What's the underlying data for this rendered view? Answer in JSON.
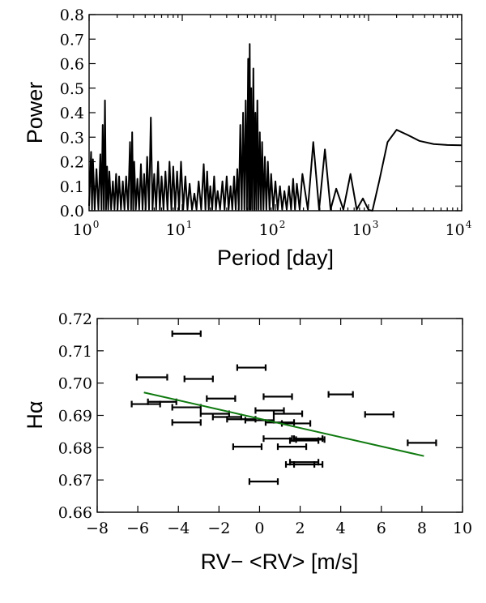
{
  "chart_data": [
    {
      "type": "line",
      "xlabel": "Period [day]",
      "ylabel": "Power",
      "xscale": "log",
      "xlim": [
        1,
        10000
      ],
      "ylim": [
        0.0,
        0.8
      ],
      "xticks": [
        {
          "base": "10",
          "exp": "0"
        },
        {
          "base": "10",
          "exp": "1"
        },
        {
          "base": "10",
          "exp": "2"
        },
        {
          "base": "10",
          "exp": "3"
        },
        {
          "base": "10",
          "exp": "4"
        }
      ],
      "yticks": [
        "0.0",
        "0.1",
        "0.2",
        "0.3",
        "0.4",
        "0.5",
        "0.6",
        "0.7",
        "0.8"
      ],
      "grid": false,
      "color": "#000000",
      "peaks": [
        {
          "x": 1.05,
          "y": 0.24
        },
        {
          "x": 1.1,
          "y": 0.21
        },
        {
          "x": 1.2,
          "y": 0.17
        },
        {
          "x": 1.32,
          "y": 0.23
        },
        {
          "x": 1.4,
          "y": 0.35
        },
        {
          "x": 1.48,
          "y": 0.45
        },
        {
          "x": 1.56,
          "y": 0.18
        },
        {
          "x": 1.65,
          "y": 0.16
        },
        {
          "x": 1.8,
          "y": 0.12
        },
        {
          "x": 1.95,
          "y": 0.15
        },
        {
          "x": 2.1,
          "y": 0.14
        },
        {
          "x": 2.3,
          "y": 0.12
        },
        {
          "x": 2.5,
          "y": 0.14
        },
        {
          "x": 2.75,
          "y": 0.28
        },
        {
          "x": 2.9,
          "y": 0.32
        },
        {
          "x": 3.05,
          "y": 0.2
        },
        {
          "x": 3.3,
          "y": 0.13
        },
        {
          "x": 3.6,
          "y": 0.19
        },
        {
          "x": 3.9,
          "y": 0.15
        },
        {
          "x": 4.2,
          "y": 0.22
        },
        {
          "x": 4.6,
          "y": 0.38
        },
        {
          "x": 5.0,
          "y": 0.15
        },
        {
          "x": 5.5,
          "y": 0.2
        },
        {
          "x": 6.0,
          "y": 0.14
        },
        {
          "x": 6.6,
          "y": 0.16
        },
        {
          "x": 7.3,
          "y": 0.2
        },
        {
          "x": 8.0,
          "y": 0.18
        },
        {
          "x": 8.8,
          "y": 0.16
        },
        {
          "x": 9.7,
          "y": 0.2
        },
        {
          "x": 10.8,
          "y": 0.14
        },
        {
          "x": 12.0,
          "y": 0.11
        },
        {
          "x": 13.5,
          "y": 0.07
        },
        {
          "x": 15.0,
          "y": 0.12
        },
        {
          "x": 17.0,
          "y": 0.19
        },
        {
          "x": 18.5,
          "y": 0.16
        },
        {
          "x": 20.0,
          "y": 0.1
        },
        {
          "x": 22.0,
          "y": 0.14
        },
        {
          "x": 24.0,
          "y": 0.08
        },
        {
          "x": 27.0,
          "y": 0.12
        },
        {
          "x": 30.0,
          "y": 0.14
        },
        {
          "x": 33.0,
          "y": 0.1
        },
        {
          "x": 36.0,
          "y": 0.14
        },
        {
          "x": 39.0,
          "y": 0.17
        },
        {
          "x": 42.0,
          "y": 0.35
        },
        {
          "x": 45.0,
          "y": 0.4
        },
        {
          "x": 48.0,
          "y": 0.45
        },
        {
          "x": 51.0,
          "y": 0.62
        },
        {
          "x": 53.0,
          "y": 0.68
        },
        {
          "x": 55.0,
          "y": 0.5
        },
        {
          "x": 58.0,
          "y": 0.58
        },
        {
          "x": 61.0,
          "y": 0.4
        },
        {
          "x": 64.0,
          "y": 0.45
        },
        {
          "x": 68.0,
          "y": 0.32
        },
        {
          "x": 72.0,
          "y": 0.28
        },
        {
          "x": 77.0,
          "y": 0.22
        },
        {
          "x": 83.0,
          "y": 0.2
        },
        {
          "x": 90.0,
          "y": 0.15
        },
        {
          "x": 100.0,
          "y": 0.12
        },
        {
          "x": 112.0,
          "y": 0.1
        },
        {
          "x": 125.0,
          "y": 0.08
        },
        {
          "x": 140.0,
          "y": 0.1
        },
        {
          "x": 155.0,
          "y": 0.13
        },
        {
          "x": 170.0,
          "y": 0.11
        },
        {
          "x": 195.0,
          "y": 0.15
        },
        {
          "x": 255.0,
          "y": 0.28
        },
        {
          "x": 340.0,
          "y": 0.25
        },
        {
          "x": 450.0,
          "y": 0.09
        },
        {
          "x": 640.0,
          "y": 0.15
        },
        {
          "x": 870.0,
          "y": 0.05
        }
      ],
      "long_period_curve": [
        {
          "x": 1100,
          "y": 0.0
        },
        {
          "x": 1300,
          "y": 0.12
        },
        {
          "x": 1600,
          "y": 0.28
        },
        {
          "x": 2000,
          "y": 0.33
        },
        {
          "x": 2600,
          "y": 0.31
        },
        {
          "x": 3500,
          "y": 0.285
        },
        {
          "x": 5000,
          "y": 0.272
        },
        {
          "x": 7000,
          "y": 0.268
        },
        {
          "x": 10000,
          "y": 0.267
        }
      ]
    },
    {
      "type": "scatter",
      "xlabel": "RV− <RV> [m/s]",
      "ylabel": "Hα",
      "xlim": [
        -8,
        10
      ],
      "ylim": [
        0.66,
        0.72
      ],
      "xticks": [
        "−8",
        "−6",
        "−4",
        "−2",
        "0",
        "2",
        "4",
        "6",
        "8",
        "10"
      ],
      "yticks": [
        "0.66",
        "0.67",
        "0.68",
        "0.69",
        "0.70",
        "0.71",
        "0.72"
      ],
      "grid": false,
      "error_color": "#000000",
      "fit_color": "#107a10",
      "points": [
        {
          "x": -3.6,
          "y": 0.7153,
          "xerr": 0.7
        },
        {
          "x": -5.3,
          "y": 0.7018,
          "xerr": 0.75
        },
        {
          "x": -3.0,
          "y": 0.7013,
          "xerr": 0.7
        },
        {
          "x": -0.4,
          "y": 0.7048,
          "xerr": 0.7
        },
        {
          "x": 4.0,
          "y": 0.6965,
          "xerr": 0.6
        },
        {
          "x": -5.6,
          "y": 0.6935,
          "xerr": 0.7
        },
        {
          "x": -4.8,
          "y": 0.6942,
          "xerr": 0.7
        },
        {
          "x": -3.6,
          "y": 0.6925,
          "xerr": 0.7
        },
        {
          "x": -1.9,
          "y": 0.6952,
          "xerr": 0.7
        },
        {
          "x": -2.2,
          "y": 0.6905,
          "xerr": 0.7
        },
        {
          "x": -1.6,
          "y": 0.6895,
          "xerr": 0.7
        },
        {
          "x": 0.9,
          "y": 0.6958,
          "xerr": 0.7
        },
        {
          "x": 0.5,
          "y": 0.6915,
          "xerr": 0.7
        },
        {
          "x": 1.4,
          "y": 0.6905,
          "xerr": 0.7
        },
        {
          "x": -0.9,
          "y": 0.6888,
          "xerr": 0.7
        },
        {
          "x": 0.0,
          "y": 0.6885,
          "xerr": 0.7
        },
        {
          "x": 1.0,
          "y": 0.6878,
          "xerr": 0.7
        },
        {
          "x": 1.8,
          "y": 0.6875,
          "xerr": 0.7
        },
        {
          "x": -3.6,
          "y": 0.6878,
          "xerr": 0.7
        },
        {
          "x": 5.9,
          "y": 0.6903,
          "xerr": 0.7
        },
        {
          "x": 0.9,
          "y": 0.6828,
          "xerr": 0.7
        },
        {
          "x": 2.4,
          "y": 0.6828,
          "xerr": 0.7
        },
        {
          "x": 2.2,
          "y": 0.6822,
          "xerr": 0.7
        },
        {
          "x": 2.5,
          "y": 0.6825,
          "xerr": 0.7
        },
        {
          "x": -0.6,
          "y": 0.6803,
          "xerr": 0.7
        },
        {
          "x": 1.6,
          "y": 0.6803,
          "xerr": 0.7
        },
        {
          "x": 8.0,
          "y": 0.6815,
          "xerr": 0.7
        },
        {
          "x": 2.2,
          "y": 0.6755,
          "xerr": 0.7
        },
        {
          "x": 2.0,
          "y": 0.6748,
          "xerr": 0.7
        },
        {
          "x": 2.4,
          "y": 0.6748,
          "xerr": 0.7
        },
        {
          "x": 0.2,
          "y": 0.6695,
          "xerr": 0.7
        }
      ],
      "fit_line": {
        "x": [
          -5.7,
          8.1
        ],
        "y": [
          0.6971,
          0.6774
        ]
      }
    }
  ]
}
